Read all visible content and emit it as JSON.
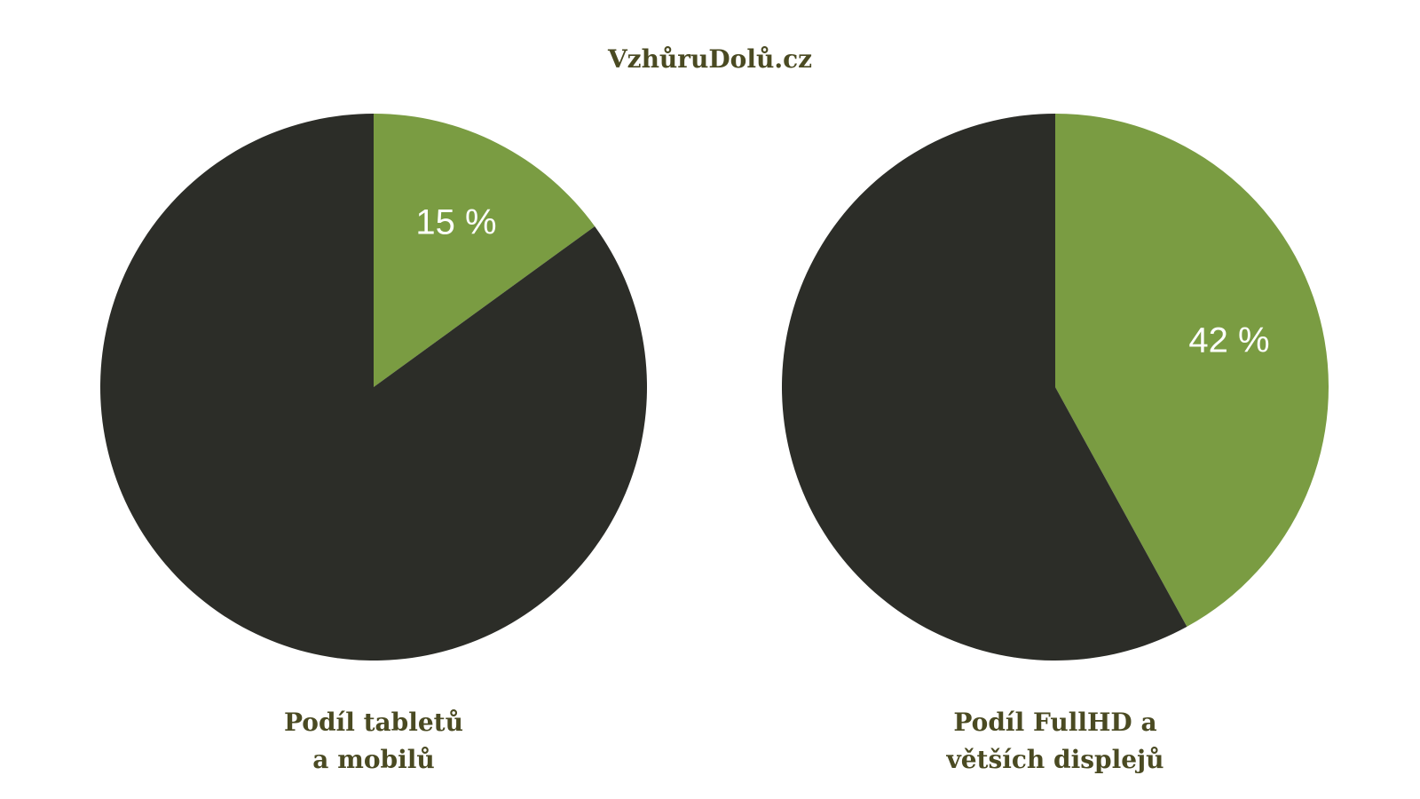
{
  "site_title": "VzhůruDolů.cz",
  "colors": {
    "highlight": "#7a9c42",
    "rest": "#2c2d28",
    "label_text": "#ffffff",
    "caption_text": "#4a4a22"
  },
  "chart_data": [
    {
      "type": "pie",
      "title_lines": [
        "Podíl tabletů",
        "a mobilů"
      ],
      "slices": [
        {
          "value": 15,
          "label": "15 %",
          "color": "#7a9c42"
        },
        {
          "value": 85,
          "label": "",
          "color": "#2c2d28"
        }
      ]
    },
    {
      "type": "pie",
      "title_lines": [
        "Podíl FullHD a",
        "větších displejů"
      ],
      "slices": [
        {
          "value": 42,
          "label": "42 %",
          "color": "#7a9c42"
        },
        {
          "value": 58,
          "label": "",
          "color": "#2c2d28"
        }
      ]
    }
  ]
}
